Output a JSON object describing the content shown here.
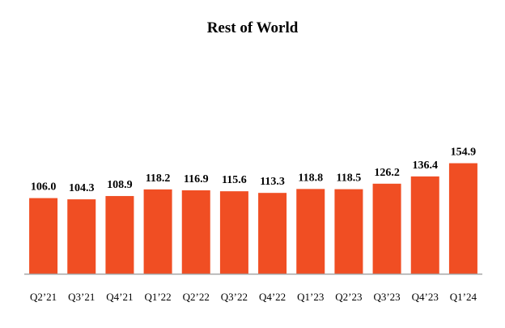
{
  "chart_data": {
    "type": "bar",
    "title": "Rest of World",
    "xlabel": "",
    "ylabel": "",
    "categories": [
      "Q2’21",
      "Q3’21",
      "Q4’21",
      "Q1’22",
      "Q2’22",
      "Q3’22",
      "Q4’22",
      "Q1’23",
      "Q2’23",
      "Q3’23",
      "Q4’23",
      "Q1’24"
    ],
    "values": [
      106.0,
      104.3,
      108.9,
      118.2,
      116.9,
      115.6,
      113.3,
      118.8,
      118.5,
      126.2,
      136.4,
      154.9
    ],
    "value_labels": [
      "106.0",
      "104.3",
      "108.9",
      "118.2",
      "116.9",
      "115.6",
      "113.3",
      "118.8",
      "118.5",
      "126.2",
      "136.4",
      "154.9"
    ],
    "ylim": [
      0,
      170
    ],
    "grid": false,
    "legend": "none",
    "bar_color": "#F04E23",
    "axis_color": "#A6A6A6"
  }
}
